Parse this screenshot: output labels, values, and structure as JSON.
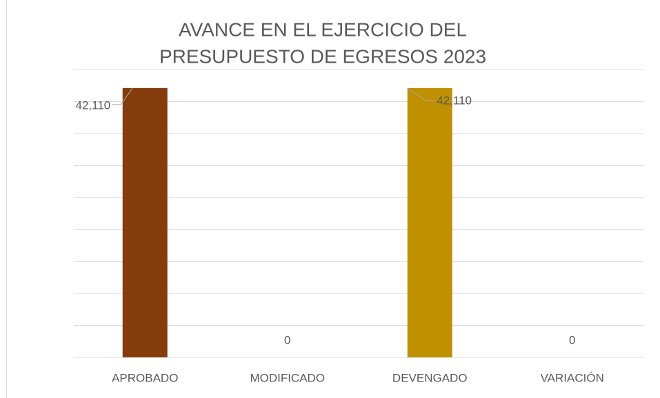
{
  "chart_data": {
    "type": "bar",
    "title": [
      "AVANCE EN EL EJERCICIO DEL",
      "PRESUPUESTO DE EGRESOS 2023"
    ],
    "categories": [
      "APROBADO",
      "MODIFICADO",
      "DEVENGADO",
      "VARIACIÓN"
    ],
    "values": [
      42110,
      0,
      42110,
      0
    ],
    "value_labels": [
      "42,110",
      "0",
      "42,110",
      "0"
    ],
    "colors": [
      "#843c0c",
      "#a5a5a5",
      "#bf9000",
      "#4472c4"
    ],
    "ylim": [
      0,
      45000
    ],
    "yticks": [
      0,
      5000,
      10000,
      15000,
      20000,
      25000,
      30000,
      35000,
      40000,
      45000
    ],
    "grid": true
  }
}
